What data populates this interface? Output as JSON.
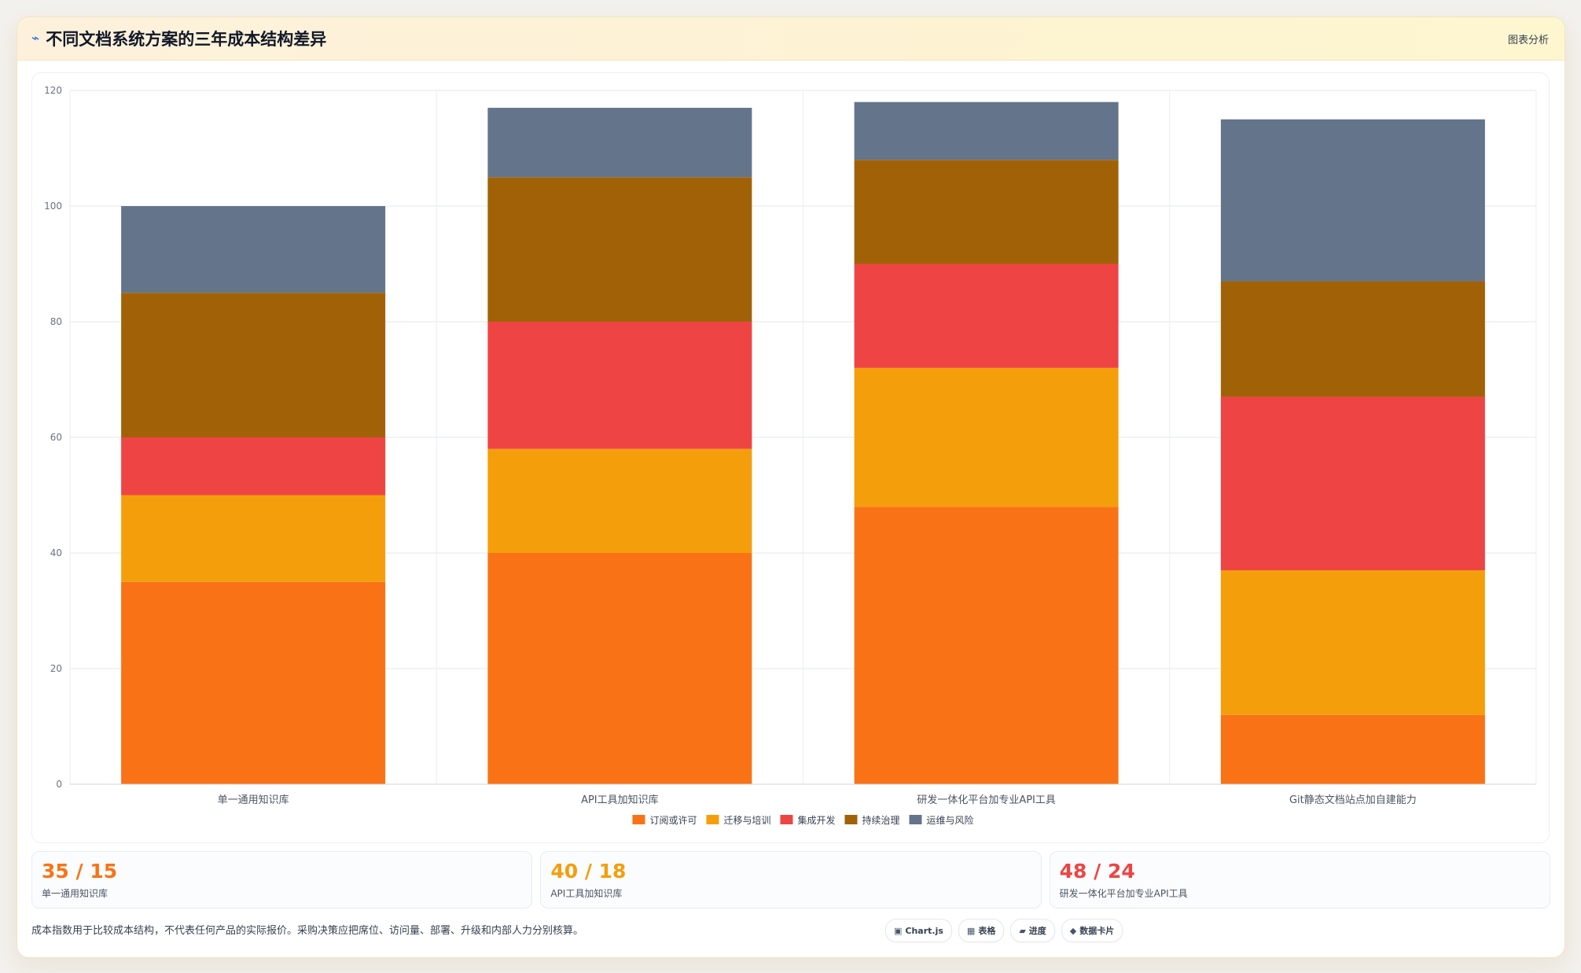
{
  "header": {
    "icon": "trend-icon",
    "title": "不同文档系统方案的三年成本结构差异",
    "right_link": "图表分析"
  },
  "chart_data": {
    "type": "bar",
    "stacked": true,
    "categories": [
      "单一通用知识库",
      "API工具加知识库",
      "研发一体化平台加专业API工具",
      "Git静态文档站点加自建能力"
    ],
    "series": [
      {
        "name": "订阅或许可",
        "color": "#f97316",
        "values": [
          35,
          40,
          48,
          12
        ]
      },
      {
        "name": "迁移与培训",
        "color": "#f59e0b",
        "values": [
          15,
          18,
          24,
          25
        ]
      },
      {
        "name": "集成开发",
        "color": "#ef4444",
        "values": [
          10,
          22,
          18,
          30
        ]
      },
      {
        "name": "持续治理",
        "color": "#a16207",
        "values": [
          25,
          25,
          18,
          20
        ]
      },
      {
        "name": "运维与风险",
        "color": "#64748b",
        "values": [
          15,
          12,
          10,
          28
        ]
      }
    ],
    "y_ticks": [
      0,
      20,
      40,
      60,
      80,
      100,
      120
    ],
    "ylim": [
      0,
      120
    ],
    "grid": true,
    "legend_position": "bottom"
  },
  "cards": [
    {
      "value": "35 / 15",
      "label": "单一通用知识库",
      "color": "#f97316"
    },
    {
      "value": "40 / 18",
      "label": "API工具加知识库",
      "color": "#f59e0b"
    },
    {
      "value": "48 / 24",
      "label": "研发一体化平台加专业API工具",
      "color": "#ef4444"
    }
  ],
  "footer": {
    "note": "成本指数用于比较成本结构，不代表任何产品的实际报价。采购决策应把席位、访问量、部署、升级和内部人力分别核算。",
    "chips": [
      {
        "icon": "▣",
        "icon_name": "chart-icon",
        "label": "Chart.js"
      },
      {
        "icon": "▦",
        "icon_name": "table-icon",
        "label": "表格"
      },
      {
        "icon": "▰",
        "icon_name": "progress-icon",
        "label": "进度"
      },
      {
        "icon": "◆",
        "icon_name": "data-card-icon",
        "label": "数据卡片"
      }
    ]
  }
}
